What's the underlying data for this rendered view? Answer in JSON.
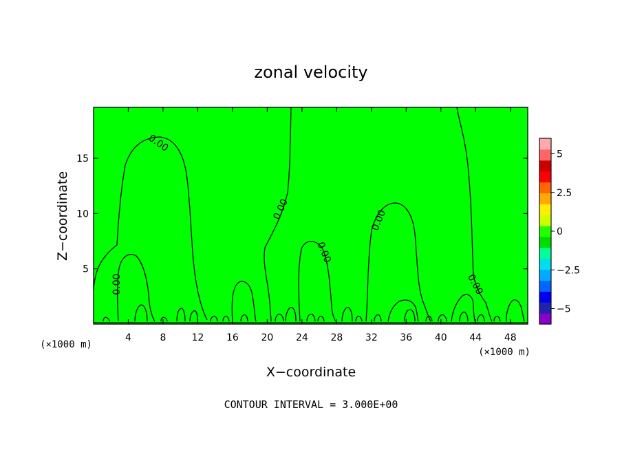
{
  "chart_data": {
    "type": "heatmap",
    "title": "zonal velocity",
    "xlabel": "X−coordinate",
    "ylabel": "Z−coordinate",
    "x_unit": "(×1000 m)",
    "x_ticks": [
      4,
      8,
      12,
      16,
      20,
      24,
      28,
      32,
      36,
      40,
      44,
      48
    ],
    "xlim": [
      0,
      50
    ],
    "y_ticks": [
      5,
      10,
      15
    ],
    "ylim": [
      0,
      19.6
    ],
    "field_value": 0,
    "contour_interval_text": "CONTOUR INTERVAL = 3.000E+00",
    "contour_label": "0.00",
    "contour_labels": [
      {
        "x": 7.5,
        "z": 16.4
      },
      {
        "x": 21.5,
        "z": 10.4
      },
      {
        "x": 26.6,
        "z": 6.5
      },
      {
        "x": 32.8,
        "z": 9.4
      },
      {
        "x": 44.0,
        "z": 3.6
      },
      {
        "x": 2.6,
        "z": 3.6
      }
    ],
    "colorbar": {
      "levels": [
        -6,
        -5,
        -4,
        -3,
        -2,
        -1,
        0,
        1,
        2,
        3,
        4,
        5,
        6
      ],
      "ticks": [
        5,
        2.5,
        0,
        -2.5,
        -5
      ],
      "tick_labels": [
        "5",
        "2.5",
        "0",
        "−2.5",
        "−5"
      ],
      "colors": [
        "#8800cc",
        "#2222aa",
        "#0000ee",
        "#0066ff",
        "#00aaff",
        "#00ddee",
        "#00ff99",
        "#00dd00",
        "#22ff00",
        "#ccff00",
        "#ffee00",
        "#ffaa00",
        "#ff6600",
        "#ff0000",
        "#cc0000",
        "#ff6666",
        "#ffaaaa"
      ]
    },
    "fill_color": "#00ff00"
  }
}
